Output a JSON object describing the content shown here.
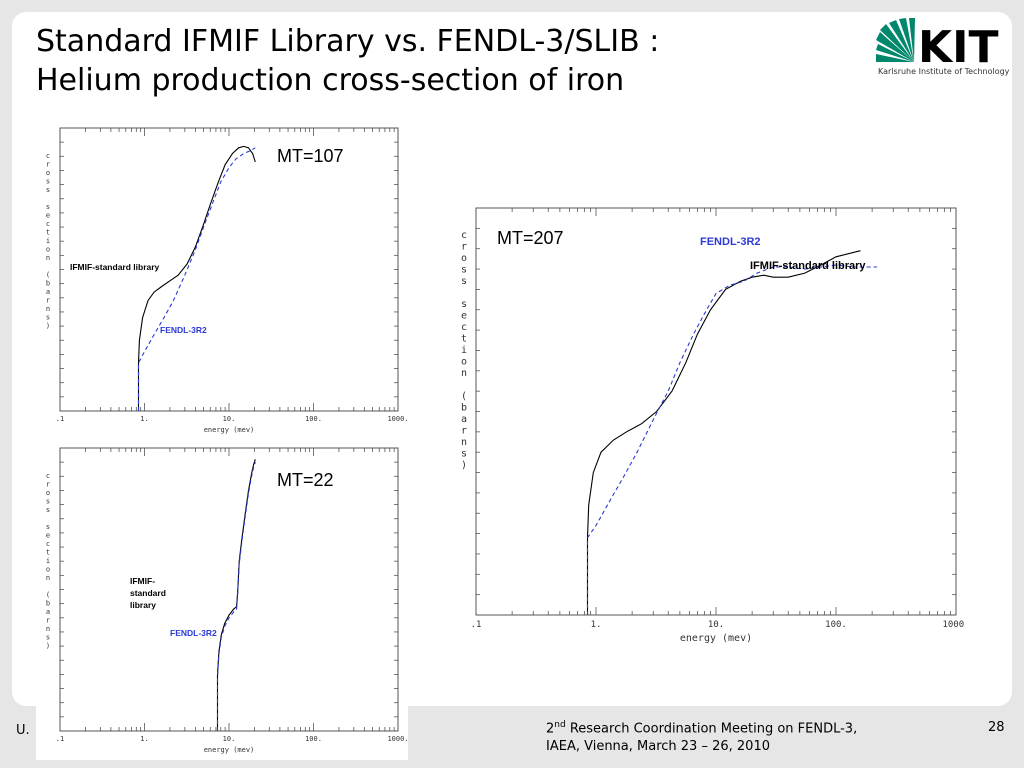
{
  "slide": {
    "title_line1": "Standard IFMIF Library vs. FENDL-3/SLIB :",
    "title_line2": "Helium production cross-section of iron",
    "logo_text": "KIT",
    "logo_caption": "Karlsruhe Institute of Technology",
    "footer_left": "U.",
    "footer_ord": "2",
    "footer_sup": "nd",
    "footer_line1_rest": " Research Coordination Meeting on FENDL-3,",
    "footer_line2": "IAEA, Vienna, March 23 – 26, 2010",
    "page_number": "28"
  },
  "colors": {
    "ifmif": "#000000",
    "fendl": "#2b3ad6",
    "logo_green": "#00876c"
  },
  "chart_data": [
    {
      "type": "line",
      "id": "mt107",
      "label": "MT=107",
      "xlabel": "energy (mev)",
      "ylabel": "cross section (barns)",
      "xscale": "log",
      "xlim": [
        0.1,
        1000
      ],
      "xticks": [
        ".1",
        "1.",
        "10.",
        "100.",
        "1000."
      ],
      "series": [
        {
          "name": "IFMIF-standard library",
          "style": "solid",
          "x": [
            0.85,
            0.85,
            0.87,
            0.95,
            1.1,
            1.3,
            1.6,
            2.0,
            2.5,
            3.2,
            4.0,
            5.0,
            6.0,
            7.5,
            9.0,
            11,
            13,
            15,
            17,
            19,
            20.5
          ],
          "y": [
            0.0,
            0.17,
            0.25,
            0.33,
            0.39,
            0.42,
            0.44,
            0.46,
            0.48,
            0.52,
            0.58,
            0.66,
            0.73,
            0.81,
            0.87,
            0.91,
            0.93,
            0.935,
            0.93,
            0.91,
            0.88
          ]
        },
        {
          "name": "FENDL-3R2",
          "style": "dashed",
          "x": [
            0.85,
            0.85,
            1.0,
            1.3,
            1.7,
            2.2,
            3.0,
            4.0,
            5.0,
            6.5,
            8.0,
            10,
            12,
            15,
            18,
            20.5
          ],
          "y": [
            0.0,
            0.17,
            0.21,
            0.27,
            0.33,
            0.39,
            0.48,
            0.57,
            0.65,
            0.74,
            0.81,
            0.86,
            0.89,
            0.91,
            0.92,
            0.93
          ]
        }
      ],
      "annotations": [
        "IFMIF-standard library",
        "FENDL-3R2"
      ]
    },
    {
      "type": "line",
      "id": "mt22",
      "label": "MT=22",
      "xlabel": "energy (mev)",
      "ylabel": "cross section (barns)",
      "xscale": "log",
      "xlim": [
        0.1,
        1000
      ],
      "xticks": [
        ".1",
        "1.",
        "10.",
        "100.",
        "1000."
      ],
      "series": [
        {
          "name": "IFMIF-standard library",
          "style": "solid",
          "x": [
            7.3,
            7.3,
            7.6,
            8.1,
            8.9,
            10.0,
            11.3,
            12.3,
            12.7,
            13.2,
            14.2,
            15.6,
            17.0,
            18.5,
            19.5,
            20.5
          ],
          "y": [
            0.0,
            0.2,
            0.28,
            0.34,
            0.38,
            0.41,
            0.43,
            0.44,
            0.5,
            0.6,
            0.68,
            0.77,
            0.85,
            0.91,
            0.94,
            0.96
          ]
        },
        {
          "name": "FENDL-3R2",
          "style": "dashed",
          "x": [
            7.3,
            7.3,
            7.6,
            8.1,
            8.9,
            10.0,
            11.3,
            12.3,
            12.7,
            13.2,
            14.2,
            15.6,
            17.0,
            18.5,
            19.5,
            20.5
          ],
          "y": [
            0.0,
            0.19,
            0.27,
            0.33,
            0.37,
            0.4,
            0.42,
            0.43,
            0.49,
            0.59,
            0.67,
            0.76,
            0.84,
            0.9,
            0.93,
            0.95
          ]
        }
      ],
      "annotations": [
        "IFMIF-",
        "standard",
        "library",
        "FENDL-3R2"
      ]
    },
    {
      "type": "line",
      "id": "mt207",
      "label": "MT=207",
      "xlabel": "energy (mev)",
      "ylabel": "cross section (barns)",
      "xscale": "log",
      "xlim": [
        0.1,
        1000
      ],
      "xticks": [
        ".1",
        "1.",
        "10.",
        "100.",
        "1000."
      ],
      "series": [
        {
          "name": "IFMIF-standard library",
          "style": "solid",
          "x": [
            0.85,
            0.85,
            0.87,
            0.95,
            1.1,
            1.4,
            1.8,
            2.4,
            3.2,
            4.3,
            5.6,
            7.0,
            9.0,
            12,
            16,
            20,
            25,
            30,
            40,
            55,
            75,
            100,
            160
          ],
          "y": [
            0.0,
            0.19,
            0.27,
            0.35,
            0.4,
            0.43,
            0.45,
            0.47,
            0.5,
            0.55,
            0.62,
            0.69,
            0.75,
            0.8,
            0.82,
            0.83,
            0.835,
            0.83,
            0.83,
            0.84,
            0.86,
            0.88,
            0.895
          ]
        },
        {
          "name": "FENDL-3R2",
          "style": "dashed",
          "x": [
            0.85,
            0.85,
            1.0,
            1.3,
            1.7,
            2.2,
            3.0,
            4.0,
            5.0,
            6.5,
            8.0,
            10,
            13,
            17,
            22,
            30,
            40,
            55,
            75,
            100,
            140,
            220
          ],
          "y": [
            0.0,
            0.19,
            0.22,
            0.28,
            0.34,
            0.4,
            0.48,
            0.55,
            0.62,
            0.69,
            0.74,
            0.79,
            0.81,
            0.82,
            0.84,
            0.855,
            0.855,
            0.85,
            0.855,
            0.86,
            0.855,
            0.855
          ]
        }
      ],
      "annotations": [
        "FENDL-3R2",
        "IFMIF-standard library"
      ]
    }
  ]
}
